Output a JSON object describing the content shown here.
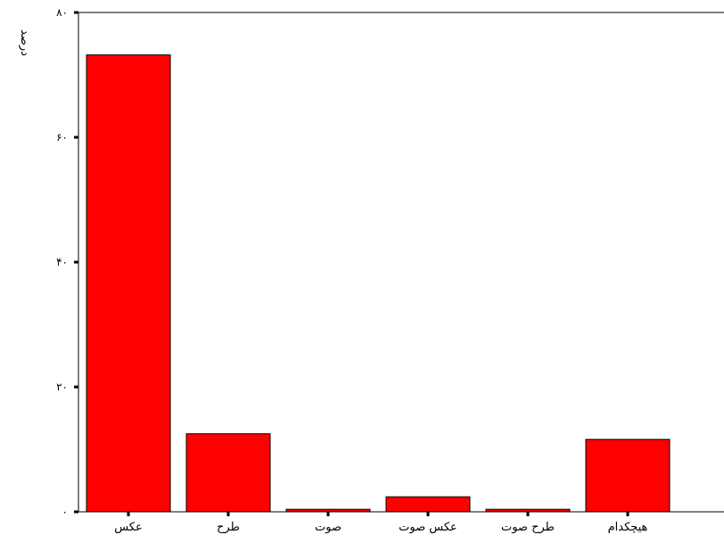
{
  "chart_data": {
    "type": "bar",
    "title": "",
    "xlabel": "",
    "ylabel": "درصد",
    "categories": [
      "عکس",
      "طرح",
      "صوت",
      "عکس صوت",
      "طرح صوت",
      "هیچکدام"
    ],
    "values": [
      73.2,
      12.5,
      0.4,
      2.4,
      0.4,
      11.6
    ],
    "ylim": [
      0,
      80
    ],
    "yticks": [
      0,
      20,
      40,
      60,
      80
    ],
    "ytick_labels": [
      "۰",
      "۲۰",
      "۴۰",
      "۶۰",
      "۸۰"
    ],
    "grid": false,
    "legend": "none",
    "bar_color": "#ff0000",
    "bar_edge_color": "#000000"
  }
}
